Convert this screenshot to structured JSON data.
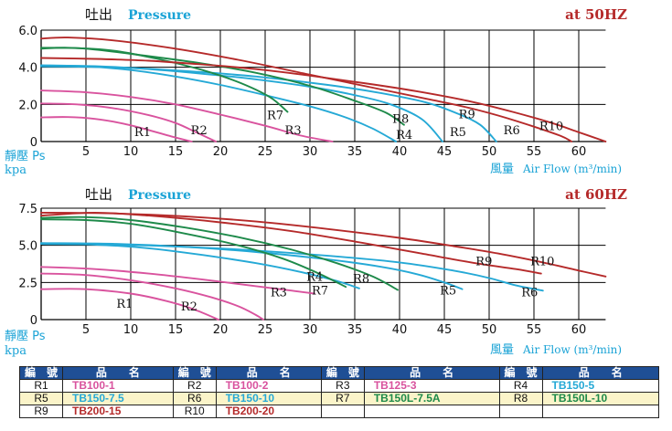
{
  "colors": {
    "pink": "#d9539e",
    "blue": "#25a9d6",
    "green": "#1e8a4a",
    "red": "#b52a2a",
    "header_blue": "#1f4f95",
    "cyan_text": "#1aa3d6"
  },
  "chart_data": [
    {
      "type": "line",
      "pressure_label_cn": "吐出",
      "pressure_label_en": "Pressure",
      "frequency_label": "at  50HZ",
      "ylabel_cn": "靜壓 Ps",
      "ylabel_unit": "kpa",
      "xlabel_cn": "風量",
      "xlabel_en": "Air Flow (m³/min)",
      "xlim": [
        0,
        63
      ],
      "ylim": [
        0,
        6.0
      ],
      "xticks": [
        "5",
        "10",
        "15",
        "20",
        "25",
        "30",
        "35",
        "40",
        "45",
        "50",
        "55",
        "60"
      ],
      "yticks": [
        "0",
        "2.0",
        "4.0",
        "6.0"
      ],
      "grid": true,
      "series": [
        {
          "name": "R1",
          "color": "pink",
          "label_at": [
            10.4,
            0.48
          ],
          "points": [
            [
              0,
              1.3
            ],
            [
              3,
              1.32
            ],
            [
              6,
              1.22
            ],
            [
              9,
              0.98
            ],
            [
              12,
              0.62
            ],
            [
              14.5,
              0.28
            ],
            [
              16.8,
              0
            ]
          ]
        },
        {
          "name": "R2",
          "color": "pink",
          "label_at": [
            16.7,
            0.6
          ],
          "points": [
            [
              0,
              2.05
            ],
            [
              4,
              2.0
            ],
            [
              8,
              1.8
            ],
            [
              12,
              1.42
            ],
            [
              15,
              1.0
            ],
            [
              17.5,
              0.45
            ],
            [
              19.5,
              0
            ]
          ]
        },
        {
          "name": "R3",
          "color": "pink",
          "label_at": [
            27.2,
            0.6
          ],
          "points": [
            [
              0,
              2.75
            ],
            [
              5,
              2.65
            ],
            [
              10,
              2.4
            ],
            [
              15,
              2.0
            ],
            [
              20,
              1.45
            ],
            [
              25,
              0.85
            ],
            [
              29,
              0.32
            ],
            [
              32.5,
              0
            ]
          ]
        },
        {
          "name": "R4",
          "color": "blue",
          "label_at": [
            39.6,
            0.35
          ],
          "points": [
            [
              0,
              4.1
            ],
            [
              5,
              4.05
            ],
            [
              10,
              3.85
            ],
            [
              15,
              3.5
            ],
            [
              20,
              3.05
            ],
            [
              25,
              2.5
            ],
            [
              30,
              1.9
            ],
            [
              34,
              1.3
            ],
            [
              37,
              0.7
            ],
            [
              39.6,
              0
            ]
          ]
        },
        {
          "name": "R5",
          "color": "blue",
          "label_at": [
            45.6,
            0.5
          ],
          "points": [
            [
              0,
              4.1
            ],
            [
              6,
              4.06
            ],
            [
              12,
              3.9
            ],
            [
              18,
              3.65
            ],
            [
              24,
              3.35
            ],
            [
              30,
              2.95
            ],
            [
              35,
              2.5
            ],
            [
              39,
              2.0
            ],
            [
              42.5,
              1.2
            ],
            [
              44.8,
              0
            ]
          ]
        },
        {
          "name": "R6",
          "color": "blue",
          "label_at": [
            51.6,
            0.6
          ],
          "points": [
            [
              0,
              4.05
            ],
            [
              8,
              4.0
            ],
            [
              16,
              3.8
            ],
            [
              24,
              3.5
            ],
            [
              32,
              3.05
            ],
            [
              38,
              2.6
            ],
            [
              43,
              2.1
            ],
            [
              46.5,
              1.5
            ],
            [
              49,
              0.9
            ],
            [
              50.8,
              0
            ]
          ]
        },
        {
          "name": "R7",
          "color": "green",
          "label_at": [
            25.2,
            1.4
          ],
          "points": [
            [
              0,
              5.0
            ],
            [
              3,
              5.05
            ],
            [
              8,
              4.9
            ],
            [
              13,
              4.45
            ],
            [
              18,
              3.85
            ],
            [
              22,
              3.2
            ],
            [
              25.5,
              2.4
            ],
            [
              27.5,
              1.6
            ]
          ]
        },
        {
          "name": "R8",
          "color": "green",
          "label_at": [
            39.2,
            1.2
          ],
          "points": [
            [
              0,
              5.05
            ],
            [
              5,
              5.0
            ],
            [
              12,
              4.6
            ],
            [
              18,
              4.2
            ],
            [
              24,
              3.7
            ],
            [
              30,
              3.0
            ],
            [
              35,
              2.2
            ],
            [
              38.5,
              1.55
            ],
            [
              40.5,
              0.9
            ]
          ]
        },
        {
          "name": "R9",
          "color": "red",
          "label_at": [
            46.6,
            1.45
          ],
          "points": [
            [
              0,
              5.55
            ],
            [
              3,
              5.6
            ],
            [
              8,
              5.45
            ],
            [
              15,
              5.0
            ],
            [
              22,
              4.4
            ],
            [
              30,
              3.6
            ],
            [
              37,
              2.9
            ],
            [
              43,
              2.3
            ],
            [
              47,
              1.9
            ],
            [
              51,
              1.4
            ],
            [
              55,
              0.8
            ],
            [
              58,
              0.3
            ],
            [
              59.2,
              0
            ]
          ]
        },
        {
          "name": "R10",
          "color": "red",
          "label_at": [
            55.6,
            0.8
          ],
          "points": [
            [
              0,
              4.5
            ],
            [
              6,
              4.45
            ],
            [
              12,
              4.35
            ],
            [
              18,
              4.15
            ],
            [
              24,
              3.9
            ],
            [
              30,
              3.55
            ],
            [
              36,
              3.15
            ],
            [
              42,
              2.7
            ],
            [
              48,
              2.15
            ],
            [
              53,
              1.55
            ],
            [
              57,
              1.0
            ],
            [
              60,
              0.5
            ],
            [
              63,
              0
            ]
          ]
        }
      ]
    },
    {
      "type": "line",
      "pressure_label_cn": "吐出",
      "pressure_label_en": "Pressure",
      "frequency_label": "at  60HZ",
      "ylabel_cn": "靜壓 Ps",
      "ylabel_unit": "kpa",
      "xlabel_cn": "風量",
      "xlabel_en": "Air Flow (m³/min)",
      "xlim": [
        0,
        63
      ],
      "ylim": [
        0,
        7.5
      ],
      "xticks": [
        "5",
        "10",
        "15",
        "20",
        "25",
        "30",
        "35",
        "40",
        "45",
        "50",
        "55",
        "60"
      ],
      "yticks": [
        "0",
        "2.5",
        "5.0",
        "7.5"
      ],
      "grid": true,
      "series": [
        {
          "name": "R1",
          "color": "pink",
          "label_at": [
            8.4,
            1.05
          ],
          "points": [
            [
              0,
              2.05
            ],
            [
              5,
              2.05
            ],
            [
              10,
              1.75
            ],
            [
              14,
              1.25
            ],
            [
              17,
              0.7
            ],
            [
              19.8,
              0
            ]
          ]
        },
        {
          "name": "R2",
          "color": "pink",
          "label_at": [
            15.6,
            0.85
          ],
          "points": [
            [
              0,
              3.1
            ],
            [
              5,
              3.0
            ],
            [
              10,
              2.65
            ],
            [
              15,
              2.1
            ],
            [
              19,
              1.5
            ],
            [
              22,
              0.9
            ],
            [
              24,
              0.3
            ],
            [
              24.8,
              0
            ]
          ]
        },
        {
          "name": "R3",
          "color": "pink",
          "label_at": [
            25.6,
            1.8
          ],
          "points": [
            [
              0,
              3.55
            ],
            [
              6,
              3.4
            ],
            [
              12,
              3.1
            ],
            [
              18,
              2.7
            ],
            [
              24,
              2.25
            ],
            [
              28,
              1.95
            ],
            [
              30.5,
              1.75
            ]
          ]
        },
        {
          "name": "R4",
          "color": "blue",
          "label_at": [
            29.6,
            2.85
          ],
          "points": [
            [
              0,
              5.1
            ],
            [
              6,
              5.05
            ],
            [
              12,
              4.8
            ],
            [
              18,
              4.35
            ],
            [
              24,
              3.8
            ],
            [
              29,
              3.2
            ],
            [
              33,
              2.6
            ],
            [
              35.5,
              2.1
            ]
          ]
        },
        {
          "name": "R5",
          "color": "blue",
          "label_at": [
            44.5,
            1.95
          ],
          "points": [
            [
              0,
              5.15
            ],
            [
              8,
              5.1
            ],
            [
              16,
              4.9
            ],
            [
              24,
              4.55
            ],
            [
              32,
              4.05
            ],
            [
              38,
              3.55
            ],
            [
              42,
              3.05
            ],
            [
              45,
              2.5
            ],
            [
              47,
              2.05
            ]
          ]
        },
        {
          "name": "R6",
          "color": "blue",
          "label_at": [
            53.6,
            1.8
          ],
          "points": [
            [
              0,
              5.1
            ],
            [
              8,
              5.05
            ],
            [
              16,
              4.9
            ],
            [
              24,
              4.65
            ],
            [
              32,
              4.3
            ],
            [
              40,
              3.85
            ],
            [
              46,
              3.3
            ],
            [
              50,
              2.8
            ],
            [
              53,
              2.3
            ],
            [
              56,
              1.95
            ]
          ]
        },
        {
          "name": "R7",
          "color": "green",
          "label_at": [
            30.2,
            1.95
          ],
          "points": [
            [
              0,
              6.75
            ],
            [
              5,
              6.7
            ],
            [
              10,
              6.45
            ],
            [
              16,
              5.8
            ],
            [
              22,
              5.0
            ],
            [
              27,
              4.1
            ],
            [
              31,
              3.1
            ],
            [
              34,
              2.2
            ]
          ]
        },
        {
          "name": "R8",
          "color": "green",
          "label_at": [
            34.8,
            2.75
          ],
          "points": [
            [
              0,
              6.85
            ],
            [
              5,
              6.9
            ],
            [
              10,
              6.7
            ],
            [
              16,
              6.2
            ],
            [
              22,
              5.55
            ],
            [
              28,
              4.7
            ],
            [
              33,
              3.8
            ],
            [
              37,
              2.9
            ],
            [
              39.8,
              2.0
            ]
          ]
        },
        {
          "name": "R9",
          "color": "red",
          "label_at": [
            48.5,
            3.9
          ],
          "points": [
            [
              0,
              7.0
            ],
            [
              6,
              7.2
            ],
            [
              12,
              7.0
            ],
            [
              20,
              6.55
            ],
            [
              28,
              5.95
            ],
            [
              36,
              5.15
            ],
            [
              42,
              4.5
            ],
            [
              48,
              3.85
            ],
            [
              53,
              3.4
            ],
            [
              55.8,
              3.1
            ]
          ]
        },
        {
          "name": "R10",
          "color": "red",
          "label_at": [
            54.6,
            3.9
          ],
          "points": [
            [
              0,
              7.2
            ],
            [
              8,
              7.15
            ],
            [
              16,
              6.95
            ],
            [
              24,
              6.6
            ],
            [
              32,
              6.1
            ],
            [
              40,
              5.5
            ],
            [
              46,
              4.95
            ],
            [
              51,
              4.45
            ],
            [
              56,
              3.85
            ],
            [
              60,
              3.3
            ],
            [
              63,
              2.9
            ]
          ]
        }
      ]
    }
  ],
  "legend_table": {
    "header": [
      "編　號",
      "品　　名",
      "編　號",
      "品　　名",
      "編　號",
      "品　　名",
      "編　號",
      "品　　名"
    ],
    "rows": [
      [
        {
          "code": "R1",
          "model": "TB100-1",
          "color": "pink"
        },
        {
          "code": "R2",
          "model": "TB100-2",
          "color": "pink"
        },
        {
          "code": "R3",
          "model": "TB125-3",
          "color": "pink"
        },
        {
          "code": "R4",
          "model": "TB150-5",
          "color": "blue"
        }
      ],
      [
        {
          "code": "R5",
          "model": "TB150-7.5",
          "color": "blue"
        },
        {
          "code": "R6",
          "model": "TB150-10",
          "color": "blue"
        },
        {
          "code": "R7",
          "model": "TB150L-7.5A",
          "color": "green"
        },
        {
          "code": "R8",
          "model": "TB150L-10",
          "color": "green"
        }
      ],
      [
        {
          "code": "R9",
          "model": "TB200-15",
          "color": "red"
        },
        {
          "code": "R10",
          "model": "TB200-20",
          "color": "red"
        },
        {
          "code": "",
          "model": "",
          "color": ""
        },
        {
          "code": "",
          "model": "",
          "color": ""
        }
      ]
    ]
  }
}
